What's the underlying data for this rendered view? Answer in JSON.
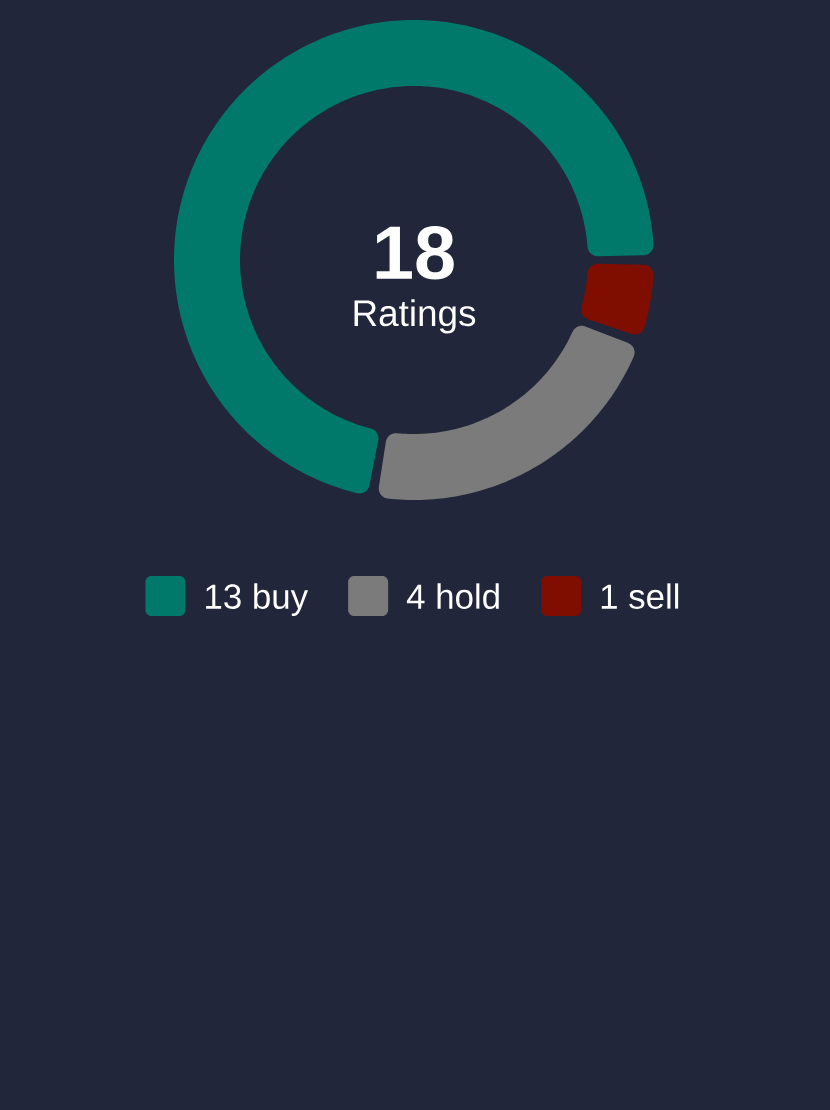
{
  "chart_data": {
    "type": "donut",
    "categories": [
      "13 buy",
      "4 hold",
      "1 sell"
    ],
    "values": [
      13,
      4,
      1
    ],
    "colors": [
      "#00796b",
      "#7b7b7b",
      "#7f0e00"
    ],
    "annotations": [
      "18",
      "Ratings"
    ],
    "legend": "bottom"
  }
}
